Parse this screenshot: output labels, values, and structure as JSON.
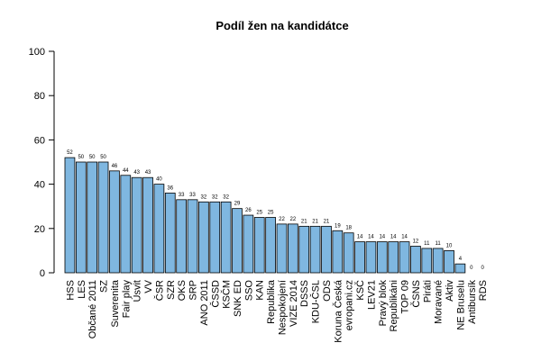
{
  "chart_data": {
    "type": "bar",
    "title": "Podíl žen na kandidátce",
    "xlabel": "",
    "ylabel": "",
    "ylim": [
      0,
      100
    ],
    "yticks": [
      0,
      20,
      40,
      60,
      80,
      100
    ],
    "grid": false,
    "bar_color": "#7fb7e0",
    "bar_edge_color": "#000000",
    "categories": [
      "HSS",
      "LES",
      "Občané 2011",
      "SZ",
      "Suverenita",
      "Fair play",
      "Úsvit",
      "VV",
      "ČSR",
      "SZR",
      "OKS",
      "SRP",
      "ANO 2011",
      "ČSSD",
      "KSČM",
      "SNK ED",
      "SSO",
      "KAN",
      "Republika",
      "Nespokojení",
      "VIZE 2014",
      "DSSS",
      "KDU-ČSL",
      "ODS",
      "Koruna Česká",
      "evropani.cz",
      "KSČ",
      "LEV21",
      "Pravý blok",
      "Republikáni",
      "TOP 09",
      "ČSNS",
      "Piráti",
      "Moravané",
      "Aktiv",
      "NE Bruselu",
      "Antibursík",
      "RDS"
    ],
    "values": [
      52,
      50,
      50,
      50,
      46,
      44,
      43,
      43,
      40,
      36,
      33,
      33,
      32,
      32,
      32,
      29,
      26,
      25,
      25,
      22,
      22,
      21,
      21,
      21,
      19,
      18,
      14,
      14,
      14,
      14,
      14,
      12,
      11,
      11,
      10,
      4,
      0,
      0
    ]
  }
}
